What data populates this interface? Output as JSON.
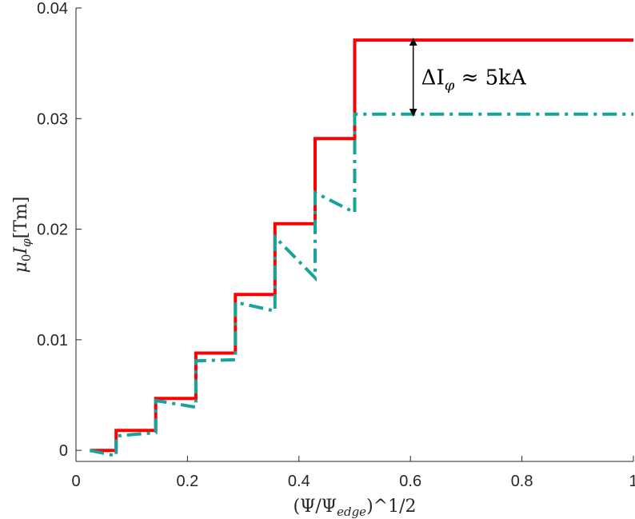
{
  "chart_data": {
    "type": "line",
    "xlabel": "(Ψ/Ψ",
    "xlabel_sub": "edge",
    "xlabel_sup": ")^1/2",
    "ylabel": "μ0Iφ[Tm]",
    "ylabel_parts": {
      "mu": "μ",
      "mu_sub": "0",
      "i": "I",
      "i_sub": "φ",
      "unit": "[Tm]"
    },
    "xlim": [
      0,
      1
    ],
    "ylim": [
      -0.001,
      0.04
    ],
    "xticks": [
      0,
      0.2,
      0.4,
      0.6,
      0.8,
      1
    ],
    "xtick_labels": [
      "0",
      "0.2",
      "0.4",
      "0.6",
      "0.8",
      "1"
    ],
    "yticks": [
      0,
      0.01,
      0.02,
      0.03,
      0.04
    ],
    "ytick_labels": [
      "0",
      "0.01",
      "0.02",
      "0.03",
      "0.04"
    ],
    "grid": false,
    "legend": "none",
    "series": [
      {
        "color": "#ff0000",
        "style": "solid",
        "x": [
          0.025,
          0.072,
          0.072,
          0.143,
          0.143,
          0.215,
          0.215,
          0.286,
          0.286,
          0.357,
          0.357,
          0.429,
          0.429,
          0.5,
          0.5,
          1.0
        ],
        "values": [
          0.0,
          0.0,
          0.0018,
          0.0018,
          0.0047,
          0.0047,
          0.0088,
          0.0088,
          0.0141,
          0.0141,
          0.0205,
          0.0205,
          0.0282,
          0.0282,
          0.0371,
          0.0371
        ]
      },
      {
        "color": "#17a39a",
        "style": "dashdot",
        "x": [
          0.025,
          0.072,
          0.072,
          0.143,
          0.143,
          0.215,
          0.215,
          0.286,
          0.286,
          0.357,
          0.357,
          0.429,
          0.429,
          0.5,
          0.5,
          1.0
        ],
        "values": [
          0.0,
          -0.0005,
          0.0013,
          0.0016,
          0.0045,
          0.0039,
          0.0081,
          0.0082,
          0.0134,
          0.0126,
          0.0193,
          0.0156,
          0.0233,
          0.0215,
          0.0304,
          0.0304
        ]
      }
    ],
    "annotation": {
      "text_prefix": "ΔI",
      "text_sub": "φ",
      "text_suffix": " ≈ 5kA",
      "arrow_x": 0.605,
      "arrow_y_top": 0.0371,
      "arrow_y_bottom": 0.0304
    }
  }
}
